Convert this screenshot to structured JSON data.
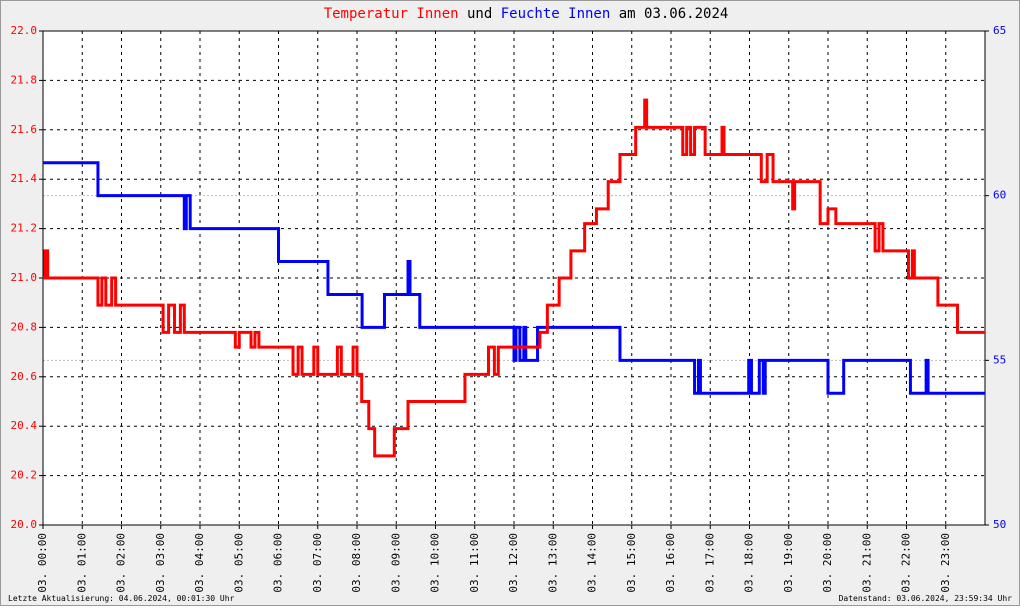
{
  "chart_data": {
    "type": "line",
    "step": "post",
    "title": [
      "Temperatur Innen",
      "und",
      "Feuchte Innen",
      "am 03.06.2024"
    ],
    "footer_left": "Letzte Aktualisierung: 04.06.2024, 00:01:30 Uhr",
    "footer_right": "Datenstand: 03.06.2024, 23:59:34 Uhr",
    "xlim": [
      0,
      24
    ],
    "xticks": [
      {
        "value": 0,
        "label": "03. 00:00"
      },
      {
        "value": 1,
        "label": "03. 01:00"
      },
      {
        "value": 2,
        "label": "03. 02:00"
      },
      {
        "value": 3,
        "label": "03. 03:00"
      },
      {
        "value": 4,
        "label": "03. 04:00"
      },
      {
        "value": 5,
        "label": "03. 05:00"
      },
      {
        "value": 6,
        "label": "03. 06:00"
      },
      {
        "value": 7,
        "label": "03. 07:00"
      },
      {
        "value": 8,
        "label": "03. 08:00"
      },
      {
        "value": 9,
        "label": "03. 09:00"
      },
      {
        "value": 10,
        "label": "03. 10:00"
      },
      {
        "value": 11,
        "label": "03. 11:00"
      },
      {
        "value": 12,
        "label": "03. 12:00"
      },
      {
        "value": 13,
        "label": "03. 13:00"
      },
      {
        "value": 14,
        "label": "03. 14:00"
      },
      {
        "value": 15,
        "label": "03. 15:00"
      },
      {
        "value": 16,
        "label": "03. 16:00"
      },
      {
        "value": 17,
        "label": "03. 17:00"
      },
      {
        "value": 18,
        "label": "03. 18:00"
      },
      {
        "value": 19,
        "label": "03. 19:00"
      },
      {
        "value": 20,
        "label": "03. 20:00"
      },
      {
        "value": 21,
        "label": "03. 21:00"
      },
      {
        "value": 22,
        "label": "03. 22:00"
      },
      {
        "value": 23,
        "label": "03. 23:00"
      }
    ],
    "ylim": [
      20.0,
      22.0
    ],
    "yticks": [
      {
        "value": 20.0,
        "label": "20.0"
      },
      {
        "value": 20.2,
        "label": "20.2"
      },
      {
        "value": 20.4,
        "label": "20.4"
      },
      {
        "value": 20.6,
        "label": "20.6"
      },
      {
        "value": 20.8,
        "label": "20.8"
      },
      {
        "value": 21.0,
        "label": "21.0"
      },
      {
        "value": 21.2,
        "label": "21.2"
      },
      {
        "value": 21.4,
        "label": "21.4"
      },
      {
        "value": 21.6,
        "label": "21.6"
      },
      {
        "value": 21.8,
        "label": "21.8"
      },
      {
        "value": 22.0,
        "label": "22.0"
      }
    ],
    "y2lim": [
      50,
      65
    ],
    "y2ticks": [
      50,
      55,
      60,
      65
    ],
    "grid": true,
    "y2grid": true,
    "series": [
      {
        "name": "Temperatur Innen",
        "color": "#ff0000",
        "x": [
          0,
          0.05,
          0.12,
          1.4,
          1.5,
          1.6,
          1.75,
          1.85,
          3.06,
          3.2,
          3.35,
          3.5,
          3.6,
          4.9,
          5.0,
          5.3,
          5.4,
          5.5,
          6.37,
          6.5,
          6.6,
          6.9,
          7.0,
          7.5,
          7.6,
          7.9,
          8.0,
          8.12,
          8.3,
          8.45,
          8.95,
          9.3,
          10.75,
          11.35,
          11.5,
          11.6,
          12.66,
          12.85,
          13.15,
          13.45,
          13.8,
          14.1,
          14.4,
          14.7,
          15.1,
          15.33,
          15.38,
          16.3,
          16.4,
          16.5,
          16.6,
          16.87,
          17.3,
          17.35,
          18.3,
          18.45,
          18.6,
          19.1,
          19.15,
          19.8,
          20.0,
          20.2,
          21.2,
          21.3,
          21.4,
          22.05,
          22.15,
          22.2,
          22.8,
          23.3,
          24
        ],
        "values": [
          21.0,
          21.11,
          21.0,
          20.89,
          21.0,
          20.89,
          21.0,
          20.89,
          20.78,
          20.89,
          20.78,
          20.89,
          20.78,
          20.72,
          20.78,
          20.72,
          20.78,
          20.72,
          20.61,
          20.72,
          20.61,
          20.72,
          20.61,
          20.72,
          20.61,
          20.72,
          20.61,
          20.5,
          20.39,
          20.28,
          20.39,
          20.5,
          20.61,
          20.72,
          20.61,
          20.72,
          20.78,
          20.89,
          21.0,
          21.11,
          21.22,
          21.28,
          21.39,
          21.5,
          21.61,
          21.72,
          21.61,
          21.5,
          21.61,
          21.5,
          21.61,
          21.5,
          21.61,
          21.5,
          21.39,
          21.5,
          21.39,
          21.28,
          21.39,
          21.22,
          21.28,
          21.22,
          21.11,
          21.22,
          21.11,
          21.0,
          21.11,
          21.0,
          20.89,
          20.78,
          20.78
        ]
      },
      {
        "name": "Feuchte Innen",
        "color": "#0000ff",
        "axis": "y2",
        "x": [
          0,
          1.4,
          3.6,
          3.65,
          3.75,
          6.0,
          7.26,
          8.13,
          8.7,
          9.3,
          9.35,
          9.6,
          12.0,
          12.05,
          12.15,
          12.25,
          12.3,
          12.6,
          14.7,
          16.6,
          16.7,
          16.75,
          17.98,
          18.05,
          18.25,
          18.35,
          18.4,
          20.0,
          20.4,
          22.1,
          22.5,
          22.55,
          24
        ],
        "values": [
          61,
          60,
          59,
          60,
          59,
          58,
          57,
          56,
          57,
          58,
          57,
          56,
          55,
          56,
          55,
          56,
          55,
          56,
          55,
          54,
          55,
          54,
          55,
          54,
          55,
          54,
          55,
          54,
          55,
          54,
          55,
          54,
          54
        ]
      }
    ]
  }
}
